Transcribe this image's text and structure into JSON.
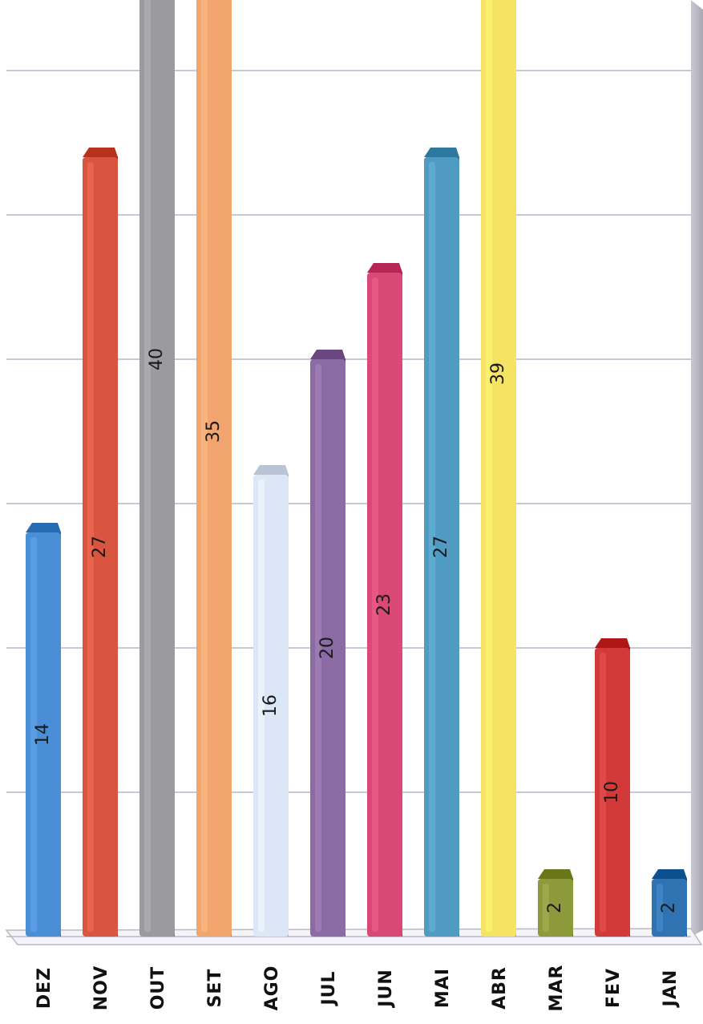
{
  "chart_data": {
    "type": "bar",
    "orientation": "rotated",
    "categories": [
      "DEZ",
      "NOV",
      "OUT",
      "SET",
      "AGO",
      "JUL",
      "JUN",
      "MAI",
      "ABR",
      "MAR",
      "FEV",
      "JAN"
    ],
    "values": [
      14,
      27,
      40,
      35,
      16,
      20,
      23,
      27,
      39,
      2,
      10,
      2
    ],
    "colors": [
      "#4a8fd6",
      "#d9553f",
      "#9b9a9e",
      "#f2a56e",
      "#dbe7f7",
      "#8c6aa3",
      "#d94876",
      "#4f9bc2",
      "#f5e363",
      "#8d9a3b",
      "#d23a3a",
      "#2f73b3"
    ],
    "ylim": [
      0,
      40
    ],
    "grid": true,
    "legend": "none",
    "title": "",
    "xlabel": "",
    "ylabel": ""
  }
}
